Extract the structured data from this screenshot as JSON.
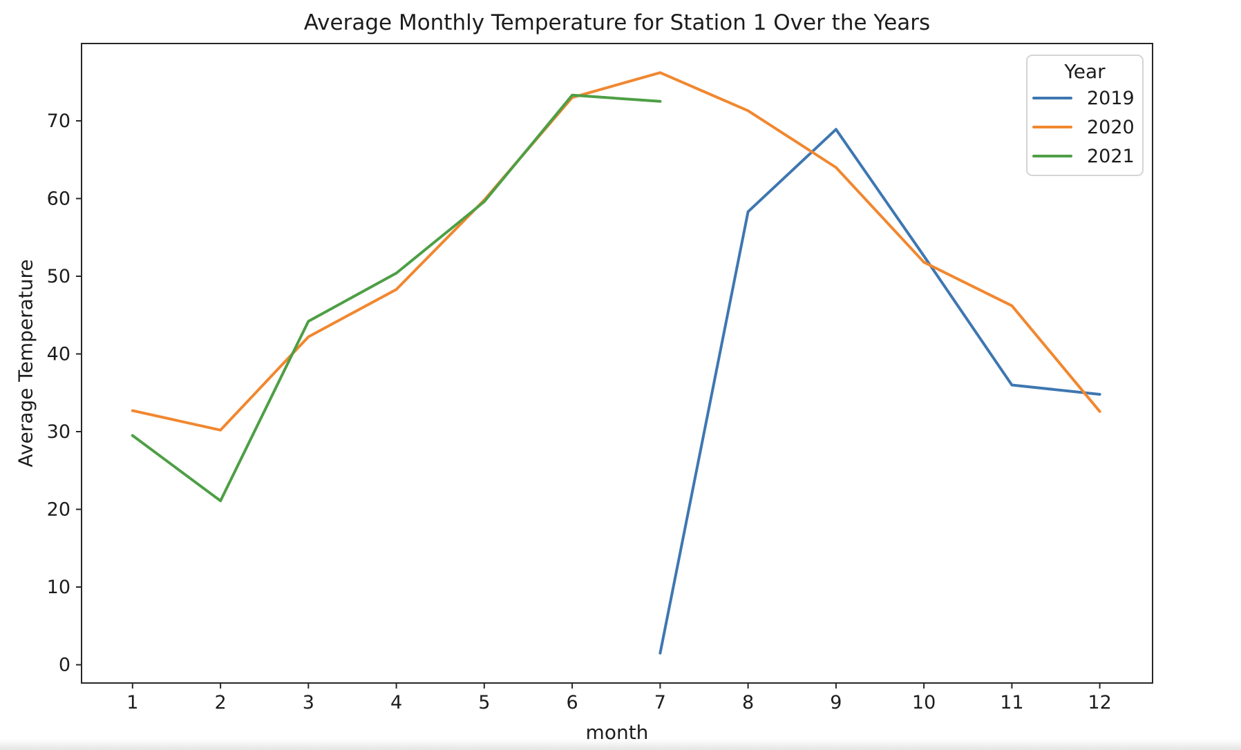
{
  "chart_data": {
    "type": "line",
    "title": "Average Monthly Temperature for Station 1 Over the Years",
    "xlabel": "month",
    "ylabel": "Average Temperature",
    "x_ticks": [
      "1",
      "2",
      "3",
      "4",
      "5",
      "6",
      "7",
      "8",
      "9",
      "10",
      "11",
      "12"
    ],
    "x_tick_values": [
      1,
      2,
      3,
      4,
      5,
      6,
      7,
      8,
      9,
      10,
      11,
      12
    ],
    "y_ticks": [
      "0",
      "10",
      "20",
      "30",
      "40",
      "50",
      "60",
      "70"
    ],
    "y_tick_values": [
      0,
      10,
      20,
      30,
      40,
      50,
      60,
      70
    ],
    "xlim": [
      0.42,
      12.6
    ],
    "ylim": [
      -2.35,
      79.95
    ],
    "grid": false,
    "legend": {
      "title": "Year",
      "position": "upper right"
    },
    "series": [
      {
        "name": "2019",
        "color": "#3e77b1",
        "x": [
          7,
          8,
          9,
          10,
          11,
          12
        ],
        "values": [
          1.5,
          58.3,
          68.9,
          52.6,
          36.0,
          34.8
        ]
      },
      {
        "name": "2020",
        "color": "#f1872f",
        "x": [
          1,
          2,
          3,
          4,
          5,
          6,
          7,
          8,
          9,
          10,
          11,
          12
        ],
        "values": [
          32.7,
          30.2,
          42.2,
          48.3,
          59.8,
          73.0,
          76.2,
          71.3,
          64.0,
          51.8,
          46.2,
          32.6
        ]
      },
      {
        "name": "2021",
        "color": "#4d9f45",
        "x": [
          1,
          2,
          3,
          4,
          5,
          6,
          7
        ],
        "values": [
          29.5,
          21.1,
          44.2,
          50.4,
          59.6,
          73.3,
          72.5
        ]
      }
    ]
  }
}
